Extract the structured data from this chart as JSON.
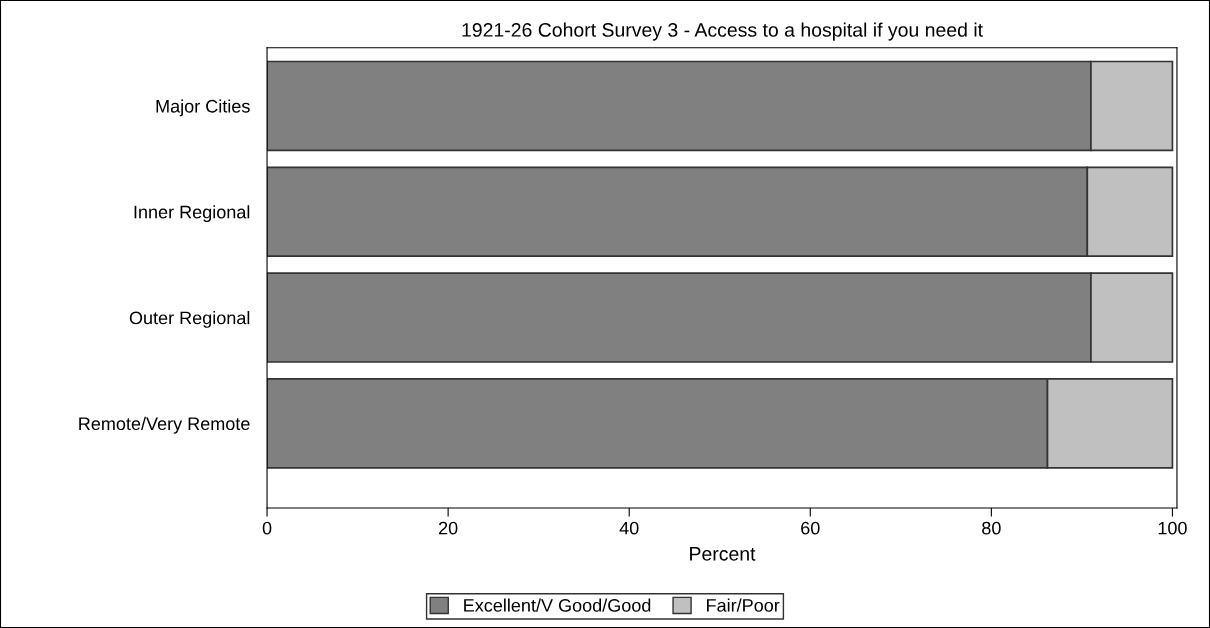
{
  "chart_data": {
    "type": "bar",
    "orientation": "horizontal",
    "stacked": true,
    "title": "1921-26 Cohort Survey 3 - Access to a hospital if you need it",
    "xlabel": "Percent",
    "categories": [
      "Major Cities",
      "Inner Regional",
      "Outer Regional",
      "Remote/Very Remote"
    ],
    "series": [
      {
        "name": "Excellent/V Good/Good",
        "color": "#808080",
        "values": [
          91.0,
          90.6,
          91.0,
          86.2
        ]
      },
      {
        "name": "Fair/Poor",
        "color": "#c0c0c0",
        "values": [
          9.0,
          9.4,
          9.0,
          13.8
        ]
      }
    ],
    "xlim": [
      0,
      100.5
    ],
    "xticks": [
      0,
      20,
      40,
      60,
      80,
      100
    ],
    "grid": false,
    "legend": "bottom"
  }
}
